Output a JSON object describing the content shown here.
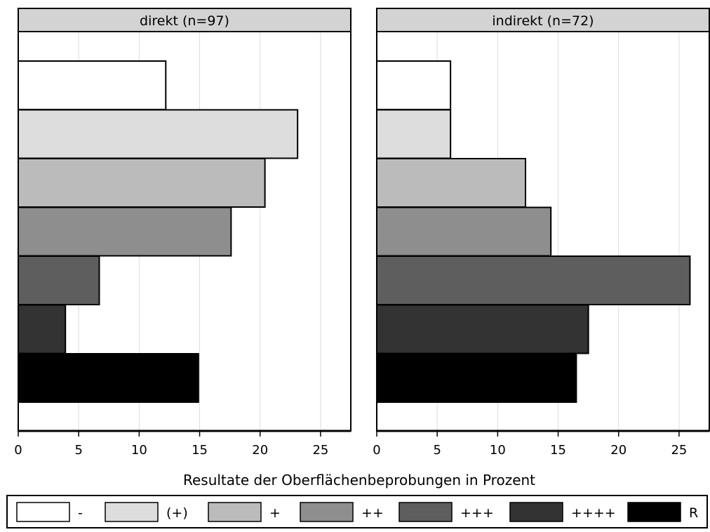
{
  "chart_data": {
    "type": "bar",
    "orientation": "horizontal",
    "xlabel": "Resultate der Oberflächenbeprobungen in Prozent",
    "xlim": [
      0,
      27.5
    ],
    "xticks": [
      0,
      5,
      10,
      15,
      20,
      25
    ],
    "grid": true,
    "legend_position": "bottom",
    "categories": [
      "-",
      "(+)",
      "+",
      "++",
      "+++",
      "++++",
      "R"
    ],
    "colors": [
      "#ffffff",
      "#dddddd",
      "#bbbbbb",
      "#8e8e8e",
      "#5e5e5e",
      "#333333",
      "#000000"
    ],
    "panels": [
      {
        "title": "direkt (n=97)",
        "values": [
          12.2,
          23.1,
          20.4,
          17.6,
          6.7,
          3.9,
          14.9
        ]
      },
      {
        "title": "indirekt (n=72)",
        "values": [
          6.1,
          6.1,
          12.3,
          14.4,
          25.9,
          17.5,
          16.5
        ]
      }
    ]
  }
}
